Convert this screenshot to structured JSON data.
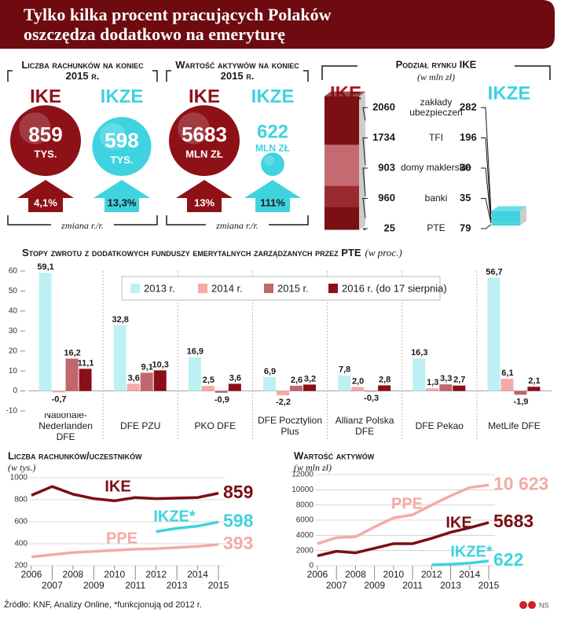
{
  "title": "Tylko kilka procent pracujących Polaków oszczędza dodatkowo na emeryturę",
  "accounts": {
    "heading": "Liczba rachunków na koniec 2015 r.",
    "items": [
      {
        "name": "IKE",
        "value": 859,
        "unit": "TYS.",
        "change": "4,1%",
        "color": "#8e1118"
      },
      {
        "name": "IKZE",
        "value": 598,
        "unit": "TYS.",
        "change": "13,3%",
        "color": "#3fd3df"
      }
    ],
    "note": "zmiana r./r."
  },
  "assets": {
    "heading": "Wartość aktywów na koniec 2015 r.",
    "items": [
      {
        "name": "IKE",
        "value": 5683,
        "unit": "MLN ZŁ",
        "change": "13%",
        "color": "#8e1118"
      },
      {
        "name": "IKZE",
        "value": 622,
        "unit": "MLN ZŁ",
        "change": "111%",
        "color": "#3fd3df"
      }
    ],
    "note": "zmiana r./r."
  },
  "chart_data": [
    {
      "type": "stacked_bar",
      "title": "Podział rynku IKE",
      "subtitle": "(w mln zł)",
      "categories": [
        "zakłady ubezpieczeń",
        "TFI",
        "domy maklerskie",
        "banki",
        "PTE"
      ],
      "series": [
        {
          "name": "IKE",
          "color": "#b3141c",
          "colors": [
            "#7a0f14",
            "#c46a70",
            "#9b2a30",
            "#7a0f14",
            "#d9a0a0"
          ],
          "values": [
            2060,
            1734,
            903,
            960,
            25
          ]
        },
        {
          "name": "IKZE",
          "color": "#3fd3df",
          "values": [
            282,
            196,
            30,
            35,
            79
          ]
        }
      ]
    },
    {
      "type": "grouped_bar",
      "title": "Stopy zwrotu z dodatkowych funduszy emerytalnych zarządzanych przez PTE",
      "subtitle": "(w proc.)",
      "categories": [
        "Nationale-Nederlanden DFE",
        "DFE PZU",
        "PKO DFE",
        "DFE Pocztylion Plus",
        "Allianz Polska DFE",
        "DFE Pekao",
        "MetLife DFE"
      ],
      "series": [
        {
          "name": "2013 r.",
          "color": "#bdf0f2",
          "values": [
            59.1,
            32.8,
            16.9,
            6.9,
            7.8,
            16.3,
            56.7
          ],
          "value_labels": [
            "59,1",
            "32,8",
            "16,9",
            "6,9",
            "7,8",
            "16,3",
            "56,7"
          ]
        },
        {
          "name": "2014 r.",
          "color": "#f4aaa6",
          "values": [
            -0.7,
            3.6,
            2.5,
            -2.2,
            2.0,
            1.3,
            6.1
          ],
          "value_labels": [
            "-0,7",
            "3,6",
            "2,5",
            "-2,2",
            "2,0",
            "1,3",
            "6,1"
          ]
        },
        {
          "name": "2015 r.",
          "color": "#c0666c",
          "values": [
            16.2,
            9.1,
            -0.9,
            2.6,
            -0.3,
            3.3,
            -1.9
          ],
          "value_labels": [
            "16,2",
            "9,1",
            "-0,9",
            "2,6",
            "-0,3",
            "3,3",
            "-1,9"
          ]
        },
        {
          "name": "2016 r. (do 17 sierpnia)",
          "color": "#8b0f17",
          "values": [
            11.1,
            10.3,
            3.6,
            3.2,
            2.8,
            2.7,
            2.1
          ],
          "value_labels": [
            "11,1",
            "10,3",
            "3,6",
            "3,2",
            "2,8",
            "2,7",
            "2,1"
          ]
        }
      ],
      "ylim": [
        -10,
        60
      ],
      "yticks": [
        -10,
        0,
        10,
        20,
        30,
        40,
        50,
        60
      ],
      "grid": false
    },
    {
      "type": "line",
      "title": "Liczba rachunków/uczestników",
      "subtitle": "(w tys.)",
      "x": [
        2006,
        2007,
        2008,
        2009,
        2010,
        2011,
        2012,
        2013,
        2014,
        2015
      ],
      "xlim": [
        2006,
        2015
      ],
      "xticks": [
        2006,
        2007,
        2008,
        2009,
        2010,
        2011,
        2012,
        2013,
        2014,
        2015
      ],
      "ylim": [
        200,
        1000
      ],
      "yticks": [
        200,
        400,
        600,
        800,
        1000
      ],
      "grid": true,
      "series": [
        {
          "name": "IKE",
          "color": "#7a0f14",
          "values": [
            840,
            920,
            850,
            810,
            790,
            820,
            810,
            815,
            820,
            859
          ]
        },
        {
          "name": "IKZE*",
          "color": "#3fd3df",
          "values": [
            null,
            null,
            null,
            null,
            null,
            null,
            510,
            540,
            560,
            598
          ]
        },
        {
          "name": "PPE",
          "color": "#f4aaa6",
          "values": [
            280,
            300,
            320,
            330,
            340,
            350,
            355,
            365,
            375,
            393
          ]
        }
      ]
    },
    {
      "type": "line",
      "title": "Wartość aktywów",
      "subtitle": "(w mln zł)",
      "x": [
        2006,
        2007,
        2008,
        2009,
        2010,
        2011,
        2012,
        2013,
        2014,
        2015
      ],
      "xlim": [
        2006,
        2015
      ],
      "xticks": [
        2006,
        2007,
        2008,
        2009,
        2010,
        2011,
        2012,
        2013,
        2014,
        2015
      ],
      "ylim": [
        0,
        12000
      ],
      "yticks": [
        0,
        2000,
        4000,
        6000,
        8000,
        10000,
        12000
      ],
      "grid": true,
      "series": [
        {
          "name": "PPE",
          "color": "#f4aaa6",
          "values": [
            2900,
            3700,
            3800,
            5100,
            6300,
            6700,
            8000,
            9200,
            10300,
            10623
          ],
          "value_labels": [
            null,
            null,
            null,
            null,
            null,
            null,
            null,
            null,
            null,
            "10 623"
          ]
        },
        {
          "name": "IKE",
          "color": "#7a0f14",
          "values": [
            1300,
            1900,
            1700,
            2300,
            2900,
            2900,
            3600,
            4400,
            5000,
            5683
          ]
        },
        {
          "name": "IKZE*",
          "color": "#3fd3df",
          "values": [
            null,
            null,
            null,
            null,
            null,
            null,
            100,
            200,
            350,
            622
          ]
        }
      ]
    }
  ],
  "source": "Źródło: KNF, Analizy Online, *funkcjonują od 2012 r.",
  "logo": "NS"
}
